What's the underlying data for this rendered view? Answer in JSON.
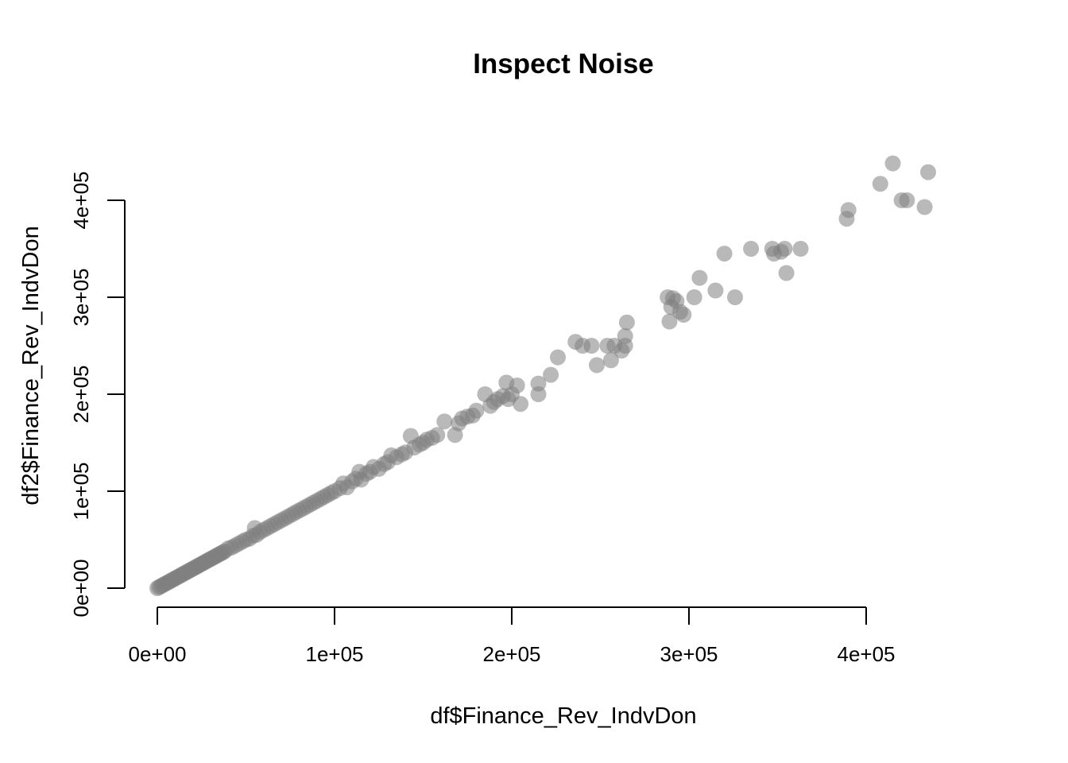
{
  "chart_data": {
    "type": "scatter",
    "title": "Inspect Noise",
    "xlabel": "df$Finance_Rev_IndvDon",
    "ylabel": "df2$Finance_Rev_IndvDon",
    "xlim": [
      0,
      435000
    ],
    "ylim": [
      0,
      435000
    ],
    "x_ticks": [
      {
        "value": 0,
        "label": "0e+00"
      },
      {
        "value": 100000,
        "label": "1e+05"
      },
      {
        "value": 200000,
        "label": "2e+05"
      },
      {
        "value": 300000,
        "label": "3e+05"
      },
      {
        "value": 400000,
        "label": "4e+05"
      }
    ],
    "y_ticks": [
      {
        "value": 0,
        "label": "0e+00"
      },
      {
        "value": 100000,
        "label": "1e+05"
      },
      {
        "value": 200000,
        "label": "2e+05"
      },
      {
        "value": 300000,
        "label": "3e+05"
      },
      {
        "value": 400000,
        "label": "4e+05"
      }
    ],
    "marker_color": "#808080",
    "marker_opacity": 0.55,
    "grid": false,
    "points": [
      [
        0,
        0
      ],
      [
        1000,
        1000
      ],
      [
        2000,
        2000
      ],
      [
        3000,
        3000
      ],
      [
        4000,
        4000
      ],
      [
        5000,
        5000
      ],
      [
        6000,
        6000
      ],
      [
        7000,
        7000
      ],
      [
        8000,
        8000
      ],
      [
        9000,
        9000
      ],
      [
        10000,
        10000
      ],
      [
        11000,
        11000
      ],
      [
        12000,
        12000
      ],
      [
        13000,
        13000
      ],
      [
        14000,
        14000
      ],
      [
        15000,
        15000
      ],
      [
        16000,
        16000
      ],
      [
        17000,
        17000
      ],
      [
        18000,
        18000
      ],
      [
        19000,
        19000
      ],
      [
        20000,
        20000
      ],
      [
        21000,
        21000
      ],
      [
        22000,
        22000
      ],
      [
        23000,
        23000
      ],
      [
        24000,
        24000
      ],
      [
        25000,
        25000
      ],
      [
        26000,
        26000
      ],
      [
        27000,
        27000
      ],
      [
        28000,
        28000
      ],
      [
        29000,
        29000
      ],
      [
        30000,
        30000
      ],
      [
        31000,
        31000
      ],
      [
        32000,
        32000
      ],
      [
        33000,
        33000
      ],
      [
        34000,
        34000
      ],
      [
        35000,
        35000
      ],
      [
        36000,
        36000
      ],
      [
        37000,
        37000
      ],
      [
        38000,
        38000
      ],
      [
        40000,
        41000
      ],
      [
        42000,
        42000
      ],
      [
        44000,
        44000
      ],
      [
        46000,
        46000
      ],
      [
        48000,
        48000
      ],
      [
        50000,
        50000
      ],
      [
        52000,
        51000
      ],
      [
        54000,
        54000
      ],
      [
        55000,
        62000
      ],
      [
        56000,
        55000
      ],
      [
        58000,
        58000
      ],
      [
        60000,
        60000
      ],
      [
        62000,
        62000
      ],
      [
        64000,
        64000
      ],
      [
        66000,
        66000
      ],
      [
        68000,
        68000
      ],
      [
        70000,
        70000
      ],
      [
        72000,
        72000
      ],
      [
        74000,
        74000
      ],
      [
        76000,
        76000
      ],
      [
        78000,
        78000
      ],
      [
        80000,
        80000
      ],
      [
        82000,
        82000
      ],
      [
        84000,
        84000
      ],
      [
        86000,
        86000
      ],
      [
        88000,
        88000
      ],
      [
        90000,
        90000
      ],
      [
        92000,
        92000
      ],
      [
        94000,
        94000
      ],
      [
        96000,
        96000
      ],
      [
        98000,
        98000
      ],
      [
        100000,
        100000
      ],
      [
        103000,
        103000
      ],
      [
        105000,
        108000
      ],
      [
        107000,
        104000
      ],
      [
        110000,
        110000
      ],
      [
        112000,
        113000
      ],
      [
        114000,
        120000
      ],
      [
        115000,
        112000
      ],
      [
        118000,
        118000
      ],
      [
        120000,
        120000
      ],
      [
        122000,
        125000
      ],
      [
        125000,
        123000
      ],
      [
        128000,
        128000
      ],
      [
        130000,
        130000
      ],
      [
        132000,
        137000
      ],
      [
        135000,
        135000
      ],
      [
        138000,
        138000
      ],
      [
        140000,
        140000
      ],
      [
        143000,
        157000
      ],
      [
        145000,
        145000
      ],
      [
        148000,
        148000
      ],
      [
        150000,
        150000
      ],
      [
        152000,
        153000
      ],
      [
        155000,
        155000
      ],
      [
        158000,
        158000
      ],
      [
        162000,
        172000
      ],
      [
        168000,
        158000
      ],
      [
        170000,
        170000
      ],
      [
        172000,
        175000
      ],
      [
        175000,
        177000
      ],
      [
        178000,
        178000
      ],
      [
        180000,
        183000
      ],
      [
        185000,
        200000
      ],
      [
        188000,
        188000
      ],
      [
        190000,
        192000
      ],
      [
        192000,
        195000
      ],
      [
        195000,
        198000
      ],
      [
        197000,
        212000
      ],
      [
        198000,
        195000
      ],
      [
        200000,
        200000
      ],
      [
        203000,
        209000
      ],
      [
        205000,
        190000
      ],
      [
        215000,
        200000
      ],
      [
        215000,
        211000
      ],
      [
        222000,
        220000
      ],
      [
        226000,
        238000
      ],
      [
        236000,
        254000
      ],
      [
        240000,
        250000
      ],
      [
        245000,
        250000
      ],
      [
        248000,
        230000
      ],
      [
        254000,
        250000
      ],
      [
        256000,
        235000
      ],
      [
        258000,
        250000
      ],
      [
        262000,
        245000
      ],
      [
        264000,
        250000
      ],
      [
        264000,
        260000
      ],
      [
        265000,
        274000
      ],
      [
        288000,
        300000
      ],
      [
        289000,
        275000
      ],
      [
        290000,
        290000
      ],
      [
        291000,
        299000
      ],
      [
        293000,
        296000
      ],
      [
        295000,
        285000
      ],
      [
        297000,
        282000
      ],
      [
        303000,
        300000
      ],
      [
        306000,
        320000
      ],
      [
        315000,
        307000
      ],
      [
        320000,
        345000
      ],
      [
        326000,
        300000
      ],
      [
        335000,
        350000
      ],
      [
        347000,
        350000
      ],
      [
        348000,
        345000
      ],
      [
        352000,
        347000
      ],
      [
        354000,
        350000
      ],
      [
        355000,
        325000
      ],
      [
        363000,
        350000
      ],
      [
        389000,
        381000
      ],
      [
        390000,
        390000
      ],
      [
        408000,
        417000
      ],
      [
        415000,
        438000
      ],
      [
        420000,
        400000
      ],
      [
        423000,
        400000
      ],
      [
        433000,
        393000
      ],
      [
        435000,
        429000
      ]
    ]
  }
}
